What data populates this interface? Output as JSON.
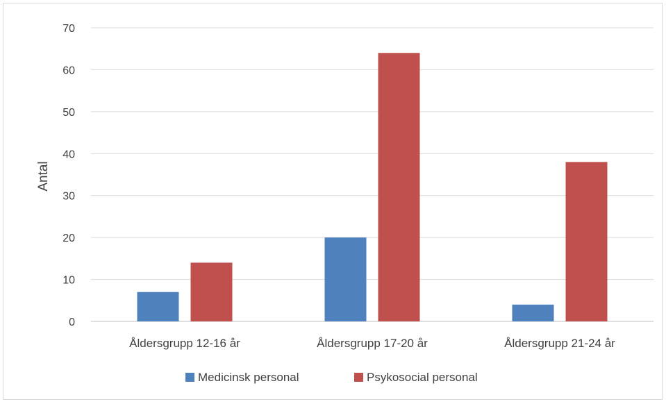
{
  "chart_data": {
    "type": "bar",
    "title": "",
    "xlabel": "",
    "ylabel": "Antal",
    "ylim": [
      0,
      70
    ],
    "yticks": [
      0,
      10,
      20,
      30,
      40,
      50,
      60,
      70
    ],
    "grid": true,
    "legend_position": "bottom",
    "categories": [
      "Åldersgrupp 12-16 år",
      "Åldersgrupp 17-20 år",
      "Åldersgrupp 21-24 år"
    ],
    "series": [
      {
        "name": "Medicinsk personal",
        "color": "#4f81bd",
        "values": [
          7,
          20,
          4
        ]
      },
      {
        "name": "Psykosocial personal",
        "color": "#c0504d",
        "values": [
          14,
          64,
          38
        ]
      }
    ]
  }
}
